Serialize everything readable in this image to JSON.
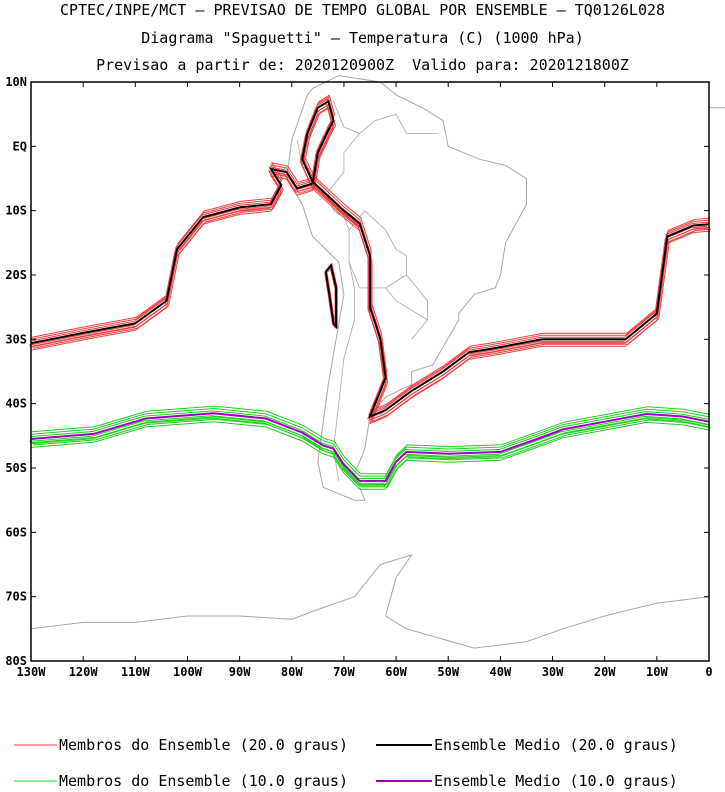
{
  "title": {
    "line1": "CPTEC/INPE/MCT – PREVISAO DE TEMPO GLOBAL POR ENSEMBLE – TQ0126L028",
    "line2": "Diagrama \"Spaguetti\" – Temperatura (C) (1000 hPa)",
    "line3": "Previsao a partir de: 2020120900Z  Valido para: 2020121800Z"
  },
  "axes": {
    "lat_labels": [
      "10N",
      "EQ",
      "10S",
      "20S",
      "30S",
      "40S",
      "50S",
      "60S",
      "70S",
      "80S"
    ],
    "lon_labels": [
      "130W",
      "120W",
      "110W",
      "100W",
      "90W",
      "80W",
      "70W",
      "60W",
      "50W",
      "40W",
      "30W",
      "20W",
      "10W",
      "0"
    ]
  },
  "legend": {
    "items": [
      {
        "label": "Membros do Ensemble (20.0 graus)",
        "color": "#f04040"
      },
      {
        "label": "Ensemble Medio (20.0 graus)",
        "color": "#000000"
      },
      {
        "label": "Membros do Ensemble (10.0 graus)",
        "color": "#20d020"
      },
      {
        "label": "Ensemble Medio (10.0 graus)",
        "color": "#a000c0"
      }
    ]
  },
  "colors": {
    "coast": "#a8a8a8",
    "frame": "#000000",
    "member20": "#f04040",
    "mean20": "#000000",
    "member10": "#20d020",
    "mean10": "#a000c0"
  },
  "map": {
    "lon_range": [
      -130,
      0
    ],
    "lat_range": [
      -80,
      10
    ],
    "isotherm20_mean": [
      [
        -130,
        -30.6
      ],
      [
        -120,
        -29
      ],
      [
        -110,
        -27.5
      ],
      [
        -104,
        -24
      ],
      [
        -102,
        -16
      ],
      [
        -97,
        -11
      ],
      [
        -90,
        -9.5
      ],
      [
        -84,
        -9
      ],
      [
        -82,
        -6
      ],
      [
        -84,
        -3.5
      ],
      [
        -81,
        -4
      ],
      [
        -79,
        -6.5
      ],
      [
        -76,
        -5.8
      ],
      [
        -75,
        -1
      ],
      [
        -73,
        2.5
      ],
      [
        -72,
        4
      ],
      [
        -73,
        7
      ],
      [
        -75,
        6
      ],
      [
        -77,
        2
      ],
      [
        -78,
        -2
      ],
      [
        -76,
        -5.5
      ],
      [
        -70,
        -10
      ],
      [
        -67,
        -12
      ],
      [
        -65,
        -17
      ],
      [
        -65,
        -25
      ],
      [
        -63,
        -30
      ],
      [
        -62,
        -36
      ],
      [
        -65,
        -42
      ],
      [
        -62,
        -41
      ],
      [
        -57,
        -38
      ],
      [
        -51,
        -35
      ],
      [
        -46,
        -32
      ],
      [
        -42,
        -31.5
      ],
      [
        -32,
        -30
      ],
      [
        -16,
        -30
      ],
      [
        -10,
        -26
      ],
      [
        -8,
        -14
      ],
      [
        -3,
        -12.3
      ],
      [
        0,
        -12.1
      ]
    ],
    "isotherm20_cell": [
      [
        -73.5,
        -19.5
      ],
      [
        -72.5,
        -18.5
      ],
      [
        -71.5,
        -22
      ],
      [
        -71.5,
        -28
      ],
      [
        -72,
        -27.5
      ],
      [
        -72.8,
        -23
      ]
    ],
    "isotherm10_mean": [
      [
        -130,
        -45.5
      ],
      [
        -118,
        -44.7
      ],
      [
        -108,
        -42.3
      ],
      [
        -95,
        -41.5
      ],
      [
        -85,
        -42.3
      ],
      [
        -78,
        -44.5
      ],
      [
        -74,
        -46.5
      ],
      [
        -72,
        -47
      ],
      [
        -70,
        -49.5
      ],
      [
        -67,
        -52
      ],
      [
        -62,
        -52
      ],
      [
        -60,
        -49
      ],
      [
        -58,
        -47.5
      ],
      [
        -50,
        -47.8
      ],
      [
        -40,
        -47.5
      ],
      [
        -33,
        -45.5
      ],
      [
        -28,
        -44
      ],
      [
        -20,
        -42.8
      ],
      [
        -12,
        -41.6
      ],
      [
        -5,
        -42
      ],
      [
        0,
        -42.8
      ]
    ],
    "coast_south_america": [
      [
        -77,
        8
      ],
      [
        -80,
        1
      ],
      [
        -81,
        -5
      ],
      [
        -78,
        -9
      ],
      [
        -76,
        -14
      ],
      [
        -71,
        -18
      ],
      [
        -70,
        -23
      ],
      [
        -71.5,
        -30
      ],
      [
        -73,
        -37
      ],
      [
        -74,
        -43
      ],
      [
        -75,
        -49
      ],
      [
        -74,
        -53
      ],
      [
        -68,
        -55
      ],
      [
        -66,
        -55
      ],
      [
        -68,
        -51
      ],
      [
        -66,
        -47
      ],
      [
        -65,
        -42
      ],
      [
        -62,
        -39
      ],
      [
        -57,
        -37
      ],
      [
        -57,
        -35
      ],
      [
        -53,
        -34
      ],
      [
        -48,
        -27
      ],
      [
        -48,
        -26
      ],
      [
        -45,
        -23
      ],
      [
        -41,
        -22
      ],
      [
        -40,
        -20
      ],
      [
        -39,
        -15
      ],
      [
        -35,
        -9
      ],
      [
        -35,
        -5
      ],
      [
        -39,
        -3
      ],
      [
        -44,
        -2
      ],
      [
        -50,
        0
      ],
      [
        -51,
        4
      ],
      [
        -55,
        6
      ],
      [
        -60,
        8
      ],
      [
        -63,
        10
      ],
      [
        -71,
        11
      ],
      [
        -76,
        9
      ],
      [
        -77,
        8
      ]
    ],
    "coast_antarctica": [
      [
        -130,
        -75
      ],
      [
        -120,
        -74
      ],
      [
        -110,
        -74
      ],
      [
        -100,
        -73
      ],
      [
        -90,
        -73
      ],
      [
        -80,
        -73.5
      ],
      [
        -75,
        -72
      ],
      [
        -68,
        -70
      ],
      [
        -63,
        -65
      ],
      [
        -57,
        -63.5
      ],
      [
        -60,
        -67
      ],
      [
        -62,
        -73
      ],
      [
        -58,
        -75
      ],
      [
        -45,
        -78
      ],
      [
        -35,
        -77
      ],
      [
        -28,
        -75
      ],
      [
        -20,
        -73
      ],
      [
        -10,
        -71
      ],
      [
        0,
        -70
      ]
    ],
    "coast_africa": [
      [
        0,
        6
      ],
      [
        3,
        6
      ],
      [
        8,
        4
      ],
      [
        9,
        1
      ],
      [
        10,
        -2
      ]
    ],
    "country_borders": [
      [
        [
          -67,
          2
        ],
        [
          -70,
          -1
        ],
        [
          -70,
          -4
        ],
        [
          -73,
          -7
        ],
        [
          -72,
          -10
        ],
        [
          -70,
          -11
        ],
        [
          -69,
          -13
        ]
      ],
      [
        [
          -69,
          -13
        ],
        [
          -66,
          -10
        ],
        [
          -62,
          -13
        ],
        [
          -60,
          -16
        ],
        [
          -58,
          -17
        ],
        [
          -58,
          -20
        ],
        [
          -54,
          -24
        ],
        [
          -54,
          -27
        ],
        [
          -57,
          -30
        ]
      ],
      [
        [
          -69,
          -13
        ],
        [
          -69,
          -18
        ],
        [
          -67,
          -22
        ],
        [
          -62,
          -22
        ],
        [
          -58,
          -20
        ]
      ],
      [
        [
          -69,
          -18
        ],
        [
          -68,
          -22
        ],
        [
          -68,
          -27
        ],
        [
          -70,
          -33
        ],
        [
          -71,
          -40
        ],
        [
          -72,
          -47
        ],
        [
          -71,
          -52
        ]
      ],
      [
        [
          -67,
          2
        ],
        [
          -64,
          4
        ],
        [
          -60,
          5
        ],
        [
          -58,
          2
        ],
        [
          -55,
          2
        ],
        [
          -52,
          2
        ]
      ],
      [
        [
          -73,
          -7
        ],
        [
          -78,
          -3
        ],
        [
          -79,
          1
        ]
      ],
      [
        [
          -72,
          7
        ],
        [
          -70,
          3
        ],
        [
          -67,
          2
        ]
      ],
      [
        [
          -62,
          -22
        ],
        [
          -60,
          -24
        ],
        [
          -58,
          -25
        ],
        [
          -54,
          -27
        ]
      ]
    ]
  }
}
